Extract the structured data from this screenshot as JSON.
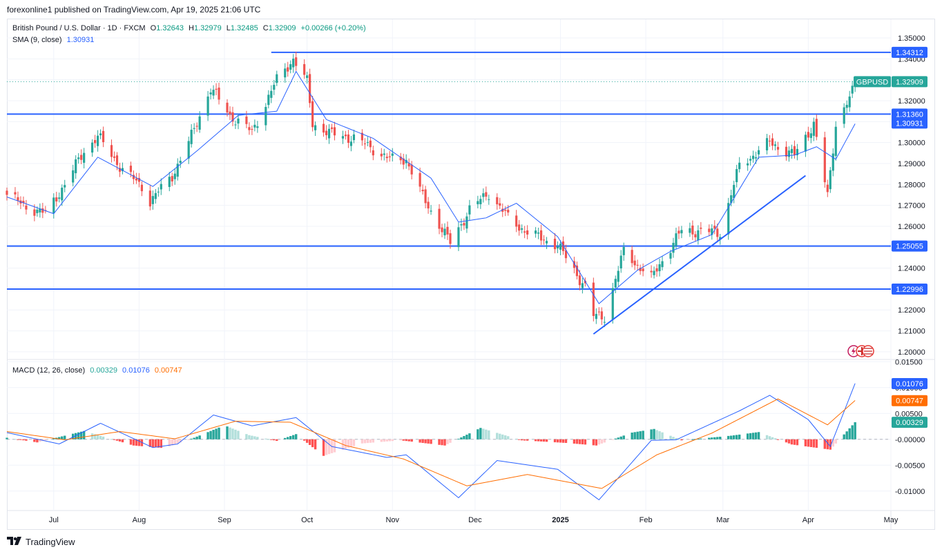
{
  "header": {
    "publisher": "forexonline1 published on TradingView.com, Apr 19, 2025 21:06 UTC"
  },
  "main_legend": {
    "symbol": "British Pound / U.S. Dollar · 1D · FXCM",
    "o_label": "O",
    "o": "1.32643",
    "h_label": "H",
    "h": "1.32979",
    "l_label": "L",
    "l": "1.32485",
    "c_label": "C",
    "c": "1.32909",
    "change": "+0.00266 (+0.20%)"
  },
  "sma_legend": {
    "label": "SMA (9, close)",
    "value": "1.30931"
  },
  "macd_legend": {
    "label": "MACD (12, 26, close)",
    "hist": "0.00329",
    "macd": "0.01076",
    "signal": "0.00747"
  },
  "footer": {
    "brand": "TradingView"
  },
  "colors": {
    "up": "#26a69a",
    "down": "#ef5350",
    "sma": "#2962ff",
    "level": "#2962ff",
    "macd": "#2962ff",
    "signal": "#ff6d00"
  },
  "chart_data": {
    "type": "candlestick",
    "symbol": "GBPUSD",
    "last_price": "1.32909",
    "y_ticks": [
      "1.35000",
      "1.34000",
      "1.33000",
      "1.32000",
      "1.31000",
      "1.30000",
      "1.29000",
      "1.28000",
      "1.27000",
      "1.26000",
      "1.25000",
      "1.24000",
      "1.23000",
      "1.22000",
      "1.21000",
      "1.20000"
    ],
    "ylim": [
      1.197,
      1.3533
    ],
    "x_ticks": [
      "Jul",
      "Aug",
      "Sep",
      "Oct",
      "Nov",
      "Dec",
      "2025",
      "Feb",
      "Mar",
      "Apr",
      "May"
    ],
    "horizontal_levels": [
      "1.34312",
      "1.31360",
      "1.25055",
      "1.22996"
    ],
    "axis_badges": {
      "symbol": "GBPUSD",
      "price": "1.32909",
      "sma": "1.30931"
    },
    "trendlines": [
      {
        "from": [
          "2025-01-13",
          1.2085
        ],
        "to": [
          "2025-03-31",
          1.2842
        ]
      }
    ],
    "price_path": [
      [
        "2024-06-14",
        1.275
      ],
      [
        "2024-06-20",
        1.27
      ],
      [
        "2024-06-28",
        1.266
      ],
      [
        "2024-07-05",
        1.28
      ],
      [
        "2024-07-12",
        1.296
      ],
      [
        "2024-07-17",
        1.303
      ],
      [
        "2024-07-26",
        1.287
      ],
      [
        "2024-08-02",
        1.279
      ],
      [
        "2024-08-05",
        1.272
      ],
      [
        "2024-08-13",
        1.284
      ],
      [
        "2024-08-20",
        1.303
      ],
      [
        "2024-08-27",
        1.326
      ],
      [
        "2024-09-03",
        1.313
      ],
      [
        "2024-09-11",
        1.305
      ],
      [
        "2024-09-20",
        1.33
      ],
      [
        "2024-09-26",
        1.34
      ],
      [
        "2024-10-01",
        1.329
      ],
      [
        "2024-10-03",
        1.309
      ],
      [
        "2024-10-10",
        1.304
      ],
      [
        "2024-10-18",
        1.302
      ],
      [
        "2024-10-25",
        1.297
      ],
      [
        "2024-10-31",
        1.292
      ],
      [
        "2024-11-06",
        1.292
      ],
      [
        "2024-11-12",
        1.274
      ],
      [
        "2024-11-22",
        1.252
      ],
      [
        "2024-11-29",
        1.268
      ],
      [
        "2024-12-06",
        1.276
      ],
      [
        "2024-12-13",
        1.264
      ],
      [
        "2024-12-20",
        1.257
      ],
      [
        "2024-12-31",
        1.251
      ],
      [
        "2025-01-10",
        1.231
      ],
      [
        "2025-01-13",
        1.217
      ],
      [
        "2025-01-17",
        1.217
      ],
      [
        "2025-01-24",
        1.248
      ],
      [
        "2025-02-03",
        1.235
      ],
      [
        "2025-02-07",
        1.244
      ],
      [
        "2025-02-14",
        1.258
      ],
      [
        "2025-02-28",
        1.257
      ],
      [
        "2025-03-07",
        1.289
      ],
      [
        "2025-03-18",
        1.3
      ],
      [
        "2025-03-27",
        1.294
      ],
      [
        "2025-04-03",
        1.309
      ],
      [
        "2025-04-08",
        1.274
      ],
      [
        "2025-04-11",
        1.309
      ],
      [
        "2025-04-17",
        1.324
      ],
      [
        "2025-04-18",
        1.329
      ]
    ],
    "sma_path": [
      [
        "2024-06-14",
        1.274
      ],
      [
        "2024-07-01",
        1.266
      ],
      [
        "2024-07-17",
        1.293
      ],
      [
        "2024-08-06",
        1.279
      ],
      [
        "2024-08-22",
        1.296
      ],
      [
        "2024-09-06",
        1.313
      ],
      [
        "2024-09-20",
        1.315
      ],
      [
        "2024-09-27",
        1.334
      ],
      [
        "2024-10-08",
        1.311
      ],
      [
        "2024-10-25",
        1.302
      ],
      [
        "2024-11-15",
        1.283
      ],
      [
        "2024-11-25",
        1.262
      ],
      [
        "2024-12-05",
        1.264
      ],
      [
        "2024-12-16",
        1.271
      ],
      [
        "2024-12-31",
        1.255
      ],
      [
        "2025-01-15",
        1.223
      ],
      [
        "2025-01-29",
        1.239
      ],
      [
        "2025-02-10",
        1.248
      ],
      [
        "2025-02-25",
        1.256
      ],
      [
        "2025-03-14",
        1.293
      ],
      [
        "2025-03-27",
        1.294
      ],
      [
        "2025-04-04",
        1.298
      ],
      [
        "2025-04-11",
        1.292
      ],
      [
        "2025-04-18",
        1.309
      ]
    ],
    "macd": {
      "y_ticks": [
        "0.01500",
        "0.01000",
        "0.00500",
        "-0.00000",
        "-0.00500",
        "-0.01000"
      ],
      "ylim": [
        -0.0135,
        0.0153
      ],
      "badges": {
        "macd": "0.01076",
        "signal": "0.00747",
        "hist": "0.00329"
      },
      "macd_path": [
        [
          "2024-06-14",
          0.0013
        ],
        [
          "2024-07-03",
          -0.0009
        ],
        [
          "2024-07-18",
          0.0031
        ],
        [
          "2024-08-06",
          -0.0016
        ],
        [
          "2024-08-15",
          -0.0009
        ],
        [
          "2024-08-28",
          0.0047
        ],
        [
          "2024-09-11",
          0.0026
        ],
        [
          "2024-09-27",
          0.0042
        ],
        [
          "2024-10-10",
          -0.0014
        ],
        [
          "2024-10-30",
          -0.0035
        ],
        [
          "2024-11-06",
          -0.003
        ],
        [
          "2024-11-25",
          -0.0113
        ],
        [
          "2024-12-09",
          -0.0041
        ],
        [
          "2024-12-31",
          -0.0058
        ],
        [
          "2025-01-15",
          -0.0117
        ],
        [
          "2025-02-03",
          -0.0002
        ],
        [
          "2025-02-12",
          -0.0001
        ],
        [
          "2025-03-07",
          0.0055
        ],
        [
          "2025-03-18",
          0.0085
        ],
        [
          "2025-04-01",
          0.0038
        ],
        [
          "2025-04-09",
          -0.0014
        ],
        [
          "2025-04-18",
          0.0108
        ]
      ],
      "signal_path": [
        [
          "2024-06-14",
          0.0015
        ],
        [
          "2024-07-05",
          -0.0001
        ],
        [
          "2024-07-25",
          0.0015
        ],
        [
          "2024-08-14",
          0.0001
        ],
        [
          "2024-09-05",
          0.0035
        ],
        [
          "2024-09-25",
          0.0033
        ],
        [
          "2024-10-15",
          -0.0012
        ],
        [
          "2024-11-05",
          -0.0038
        ],
        [
          "2024-11-28",
          -0.009
        ],
        [
          "2024-12-20",
          -0.0068
        ],
        [
          "2025-01-16",
          -0.0095
        ],
        [
          "2025-02-05",
          -0.003
        ],
        [
          "2025-02-25",
          0.0012
        ],
        [
          "2025-03-21",
          0.0078
        ],
        [
          "2025-04-08",
          0.0028
        ],
        [
          "2025-04-18",
          0.0075
        ]
      ],
      "histogram_path": [
        [
          "2024-06-14",
          0.0003
        ],
        [
          "2024-06-25",
          -0.0006
        ],
        [
          "2024-07-12",
          0.0016
        ],
        [
          "2024-07-30",
          -0.0012
        ],
        [
          "2024-08-10",
          -0.0017
        ],
        [
          "2024-08-21",
          0.0003
        ],
        [
          "2024-09-01",
          0.0027
        ],
        [
          "2024-09-10",
          0.0008
        ],
        [
          "2024-09-20",
          -0.0003
        ],
        [
          "2024-09-27",
          0.001
        ],
        [
          "2024-10-07",
          -0.0032
        ],
        [
          "2024-10-21",
          -0.0008
        ],
        [
          "2024-11-04",
          -0.0002
        ],
        [
          "2024-11-20",
          -0.0012
        ],
        [
          "2024-12-03",
          0.0022
        ],
        [
          "2024-12-18",
          -0.0002
        ],
        [
          "2025-01-03",
          -0.0007
        ],
        [
          "2025-01-14",
          -0.0012
        ],
        [
          "2025-01-27",
          0.0013
        ],
        [
          "2025-02-04",
          0.002
        ],
        [
          "2025-02-14",
          -0.0002
        ],
        [
          "2025-03-04",
          0.0007
        ],
        [
          "2025-03-14",
          0.0014
        ],
        [
          "2025-03-26",
          -0.001
        ],
        [
          "2025-04-09",
          -0.002
        ],
        [
          "2025-04-18",
          0.0033
        ]
      ]
    }
  }
}
